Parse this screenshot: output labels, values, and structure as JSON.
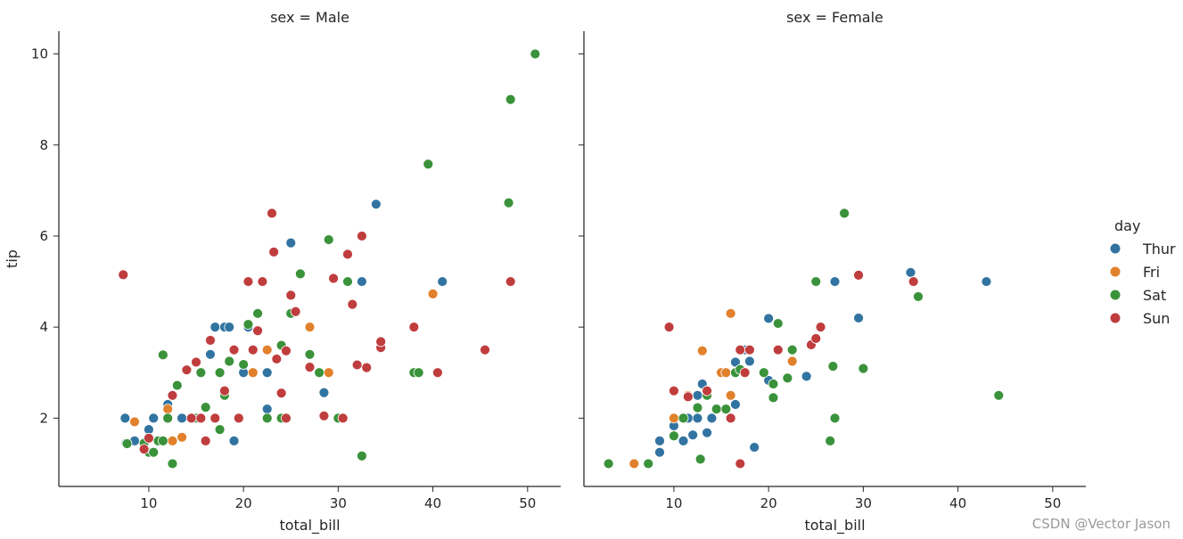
{
  "chart_data": {
    "type": "scatter",
    "x_label": "total_bill",
    "y_label": "tip",
    "x_ticks": [
      10,
      20,
      30,
      40,
      50
    ],
    "y_ticks": [
      2,
      4,
      6,
      8,
      10
    ],
    "xlim": [
      0.5,
      53.5
    ],
    "ylim": [
      0.5,
      10.5
    ],
    "legend": {
      "title": "day",
      "placement": "right",
      "entries": [
        {
          "name": "Thur",
          "color": "#3274a1"
        },
        {
          "name": "Fri",
          "color": "#e1812c"
        },
        {
          "name": "Sat",
          "color": "#3a923a"
        },
        {
          "name": "Sun",
          "color": "#c03d3e"
        }
      ]
    },
    "panels": [
      {
        "title": "sex = Male",
        "points": {
          "Thur": [
            [
              7.5,
              2.0
            ],
            [
              7.6,
              1.45
            ],
            [
              8.5,
              1.5
            ],
            [
              10.0,
              1.75
            ],
            [
              10.5,
              2.0
            ],
            [
              12.0,
              2.3
            ],
            [
              13.5,
              2.0
            ],
            [
              15.5,
              2.0
            ],
            [
              16.5,
              3.4
            ],
            [
              17.0,
              4.0
            ],
            [
              18.0,
              4.0
            ],
            [
              18.5,
              4.0
            ],
            [
              19.0,
              1.5
            ],
            [
              20.0,
              3.0
            ],
            [
              20.5,
              4.0
            ],
            [
              22.5,
              2.2
            ],
            [
              22.5,
              3.0
            ],
            [
              25.0,
              5.85
            ],
            [
              28.5,
              2.56
            ],
            [
              32.5,
              5.0
            ],
            [
              34.0,
              6.7
            ],
            [
              41.0,
              5.0
            ]
          ],
          "Fri": [
            [
              8.5,
              1.92
            ],
            [
              12.0,
              2.2
            ],
            [
              12.5,
              1.5
            ],
            [
              13.5,
              1.58
            ],
            [
              21.0,
              3.0
            ],
            [
              22.5,
              3.5
            ],
            [
              27.0,
              4.0
            ],
            [
              29.0,
              3.0
            ],
            [
              40.0,
              4.73
            ]
          ],
          "Sat": [
            [
              7.7,
              1.44
            ],
            [
              9.5,
              1.45
            ],
            [
              10.0,
              1.25
            ],
            [
              10.5,
              1.25
            ],
            [
              11.0,
              1.5
            ],
            [
              11.5,
              1.5
            ],
            [
              11.5,
              3.39
            ],
            [
              12.0,
              2.0
            ],
            [
              12.5,
              1.0
            ],
            [
              13.0,
              2.72
            ],
            [
              14.5,
              2.0
            ],
            [
              15.0,
              2.0
            ],
            [
              15.5,
              3.0
            ],
            [
              16.0,
              2.24
            ],
            [
              17.5,
              1.75
            ],
            [
              17.5,
              3.0
            ],
            [
              18.0,
              2.5
            ],
            [
              18.5,
              3.25
            ],
            [
              20.0,
              3.18
            ],
            [
              20.5,
              4.06
            ],
            [
              21.0,
              3.5
            ],
            [
              21.5,
              4.3
            ],
            [
              22.5,
              2.0
            ],
            [
              24.0,
              2.0
            ],
            [
              24.0,
              3.6
            ],
            [
              25.0,
              4.3
            ],
            [
              26.0,
              5.17
            ],
            [
              27.0,
              3.4
            ],
            [
              28.0,
              3.0
            ],
            [
              29.0,
              5.92
            ],
            [
              30.0,
              2.0
            ],
            [
              31.0,
              5.0
            ],
            [
              32.5,
              1.17
            ],
            [
              38.0,
              3.0
            ],
            [
              38.5,
              3.0
            ],
            [
              39.5,
              7.58
            ],
            [
              48.0,
              6.73
            ],
            [
              48.2,
              9.0
            ],
            [
              50.8,
              10.0
            ]
          ],
          "Sun": [
            [
              7.3,
              5.15
            ],
            [
              9.5,
              1.32
            ],
            [
              10.0,
              1.56
            ],
            [
              12.5,
              2.5
            ],
            [
              14.0,
              3.06
            ],
            [
              14.5,
              2.0
            ],
            [
              15.0,
              3.23
            ],
            [
              15.5,
              2.0
            ],
            [
              16.0,
              1.5
            ],
            [
              16.5,
              3.71
            ],
            [
              17.0,
              2.0
            ],
            [
              18.0,
              2.6
            ],
            [
              19.0,
              3.5
            ],
            [
              19.5,
              2.0
            ],
            [
              20.5,
              5.0
            ],
            [
              21.0,
              3.5
            ],
            [
              21.5,
              3.92
            ],
            [
              22.0,
              5.0
            ],
            [
              23.0,
              6.5
            ],
            [
              23.2,
              5.65
            ],
            [
              23.5,
              3.3
            ],
            [
              24.0,
              2.55
            ],
            [
              24.5,
              2.0
            ],
            [
              24.5,
              3.48
            ],
            [
              25.0,
              4.7
            ],
            [
              25.5,
              4.34
            ],
            [
              27.0,
              3.12
            ],
            [
              28.5,
              2.05
            ],
            [
              29.5,
              5.07
            ],
            [
              30.5,
              2.0
            ],
            [
              31.0,
              5.6
            ],
            [
              31.5,
              4.5
            ],
            [
              32.0,
              3.17
            ],
            [
              32.5,
              6.0
            ],
            [
              33.0,
              3.11
            ],
            [
              34.5,
              3.55
            ],
            [
              34.5,
              3.68
            ],
            [
              38.0,
              4.0
            ],
            [
              40.5,
              3.0
            ],
            [
              45.5,
              3.5
            ],
            [
              48.2,
              5.0
            ]
          ]
        }
      },
      {
        "title": "sex = Female",
        "points": {
          "Thur": [
            [
              8.5,
              1.5
            ],
            [
              8.5,
              1.25
            ],
            [
              10.0,
              1.83
            ],
            [
              11.0,
              1.5
            ],
            [
              11.5,
              2.0
            ],
            [
              12.0,
              1.63
            ],
            [
              12.5,
              2.0
            ],
            [
              12.5,
              2.5
            ],
            [
              13.0,
              2.75
            ],
            [
              13.5,
              1.68
            ],
            [
              14.0,
              2.0
            ],
            [
              15.0,
              3.0
            ],
            [
              16.5,
              3.23
            ],
            [
              16.5,
              2.3
            ],
            [
              17.5,
              3.5
            ],
            [
              18.0,
              3.25
            ],
            [
              18.5,
              1.36
            ],
            [
              19.5,
              3.0
            ],
            [
              20.0,
              2.83
            ],
            [
              20.0,
              4.19
            ],
            [
              24.0,
              2.92
            ],
            [
              27.0,
              5.0
            ],
            [
              29.5,
              4.2
            ],
            [
              35.0,
              5.2
            ],
            [
              43.0,
              5.0
            ]
          ],
          "Fri": [
            [
              5.8,
              1.0
            ],
            [
              10.0,
              2.0
            ],
            [
              11.5,
              2.5
            ],
            [
              13.0,
              3.48
            ],
            [
              15.0,
              3.0
            ],
            [
              15.5,
              3.0
            ],
            [
              16.0,
              2.5
            ],
            [
              16.0,
              4.3
            ],
            [
              16.5,
              3.0
            ],
            [
              22.5,
              3.25
            ]
          ],
          "Sat": [
            [
              3.1,
              1.0
            ],
            [
              7.3,
              1.0
            ],
            [
              10.0,
              1.61
            ],
            [
              11.0,
              2.0
            ],
            [
              12.5,
              2.23
            ],
            [
              12.8,
              1.1
            ],
            [
              13.5,
              2.5
            ],
            [
              14.5,
              2.2
            ],
            [
              15.5,
              2.2
            ],
            [
              16.5,
              3.0
            ],
            [
              17.0,
              3.07
            ],
            [
              19.5,
              3.0
            ],
            [
              20.5,
              2.75
            ],
            [
              20.5,
              2.45
            ],
            [
              21.0,
              4.08
            ],
            [
              22.0,
              2.88
            ],
            [
              22.5,
              3.5
            ],
            [
              25.0,
              5.0
            ],
            [
              26.5,
              1.5
            ],
            [
              26.8,
              3.14
            ],
            [
              27.0,
              2.0
            ],
            [
              28.0,
              6.5
            ],
            [
              30.0,
              3.09
            ],
            [
              35.8,
              4.67
            ],
            [
              44.3,
              2.5
            ]
          ],
          "Sun": [
            [
              9.5,
              4.0
            ],
            [
              10.0,
              2.6
            ],
            [
              11.5,
              2.47
            ],
            [
              13.5,
              2.6
            ],
            [
              16.0,
              2.0
            ],
            [
              17.0,
              3.5
            ],
            [
              17.0,
              1.0
            ],
            [
              17.5,
              3.0
            ],
            [
              18.0,
              3.5
            ],
            [
              21.0,
              3.5
            ],
            [
              24.5,
              3.61
            ],
            [
              25.0,
              3.75
            ],
            [
              25.5,
              4.0
            ],
            [
              29.5,
              5.14
            ],
            [
              35.3,
              5.0
            ]
          ]
        }
      }
    ]
  },
  "watermark": "CSDN @Vector Jason"
}
